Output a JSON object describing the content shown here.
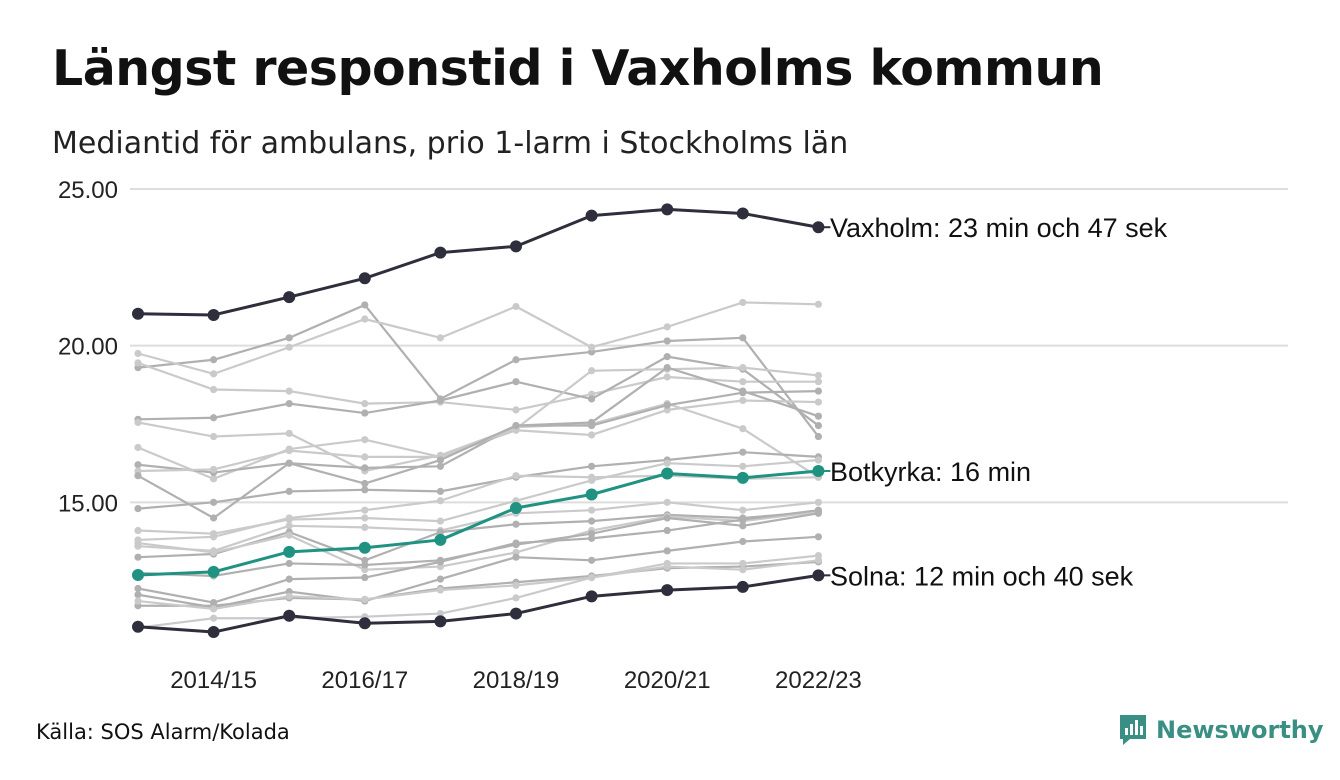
{
  "header": {
    "title": "Längst responstid i Vaxholms kommun",
    "subtitle": "Mediantid för ambulans, prio 1-larm i Stockholms län"
  },
  "footer": {
    "source": "Källa: SOS Alarm/Kolada",
    "brand": "Newsworthy"
  },
  "colors": {
    "highlight_dark": "#2e2e3c",
    "highlight_teal": "#1f9282",
    "other_a": "#b0b0b0",
    "other_b": "#cacaca",
    "grid": "#dddddd",
    "brand": "#3a8f84"
  },
  "chart_data": {
    "type": "line",
    "x": [
      "2013/14",
      "2014/15",
      "2015/16",
      "2016/17",
      "2017/18",
      "2018/19",
      "2019/20",
      "2020/21",
      "2021/22",
      "2022/23"
    ],
    "x_tick_labels": [
      "2014/15",
      "2016/17",
      "2018/19",
      "2020/21",
      "2022/23"
    ],
    "ylim": [
      10,
      25
    ],
    "y_ticks": [
      "15.00",
      "20.00",
      "25.00"
    ],
    "grid": true,
    "highlighted": [
      {
        "name": "Vaxholm",
        "label": "Vaxholm: 23 min och 47 sek",
        "color": "dark",
        "values": [
          21.02,
          20.98,
          21.55,
          22.15,
          22.97,
          23.17,
          24.15,
          24.35,
          24.22,
          23.78
        ]
      },
      {
        "name": "Botkyrka",
        "label": "Botkyrka: 16 min",
        "color": "teal",
        "values": [
          12.68,
          12.78,
          13.42,
          13.55,
          13.8,
          14.82,
          15.25,
          15.92,
          15.78,
          16.0
        ]
      },
      {
        "name": "Solna",
        "label": "Solna: 12 min och 40 sek",
        "color": "dark",
        "values": [
          11.03,
          10.86,
          11.38,
          11.14,
          11.2,
          11.45,
          12.0,
          12.2,
          12.3,
          12.67
        ]
      }
    ],
    "series": [
      {
        "values": [
          19.3,
          19.55,
          20.25,
          21.3,
          18.3,
          19.55,
          19.8,
          20.15,
          20.25,
          17.1
        ],
        "color": "a"
      },
      {
        "values": [
          19.75,
          19.1,
          19.95,
          20.85,
          20.25,
          21.25,
          19.95,
          20.6,
          21.38,
          21.32
        ],
        "color": "b"
      },
      {
        "values": [
          19.45,
          18.6,
          18.55,
          18.15,
          18.2,
          17.95,
          18.45,
          19.0,
          18.85,
          18.85
        ],
        "color": "b"
      },
      {
        "values": [
          17.65,
          17.7,
          18.15,
          17.85,
          18.25,
          18.85,
          18.3,
          19.65,
          19.25,
          17.45
        ],
        "color": "a"
      },
      {
        "values": [
          17.55,
          17.1,
          17.2,
          16.0,
          16.5,
          17.4,
          17.5,
          18.15,
          17.35,
          15.8
        ],
        "color": "b"
      },
      {
        "values": [
          16.75,
          15.75,
          16.7,
          17.0,
          16.45,
          17.3,
          17.15,
          17.95,
          18.25,
          18.2
        ],
        "color": "b"
      },
      {
        "values": [
          16.2,
          15.95,
          16.25,
          16.1,
          16.15,
          17.45,
          17.45,
          18.1,
          18.5,
          18.55
        ],
        "color": "a"
      },
      {
        "values": [
          16.0,
          16.05,
          16.65,
          16.45,
          16.45,
          17.35,
          19.2,
          19.25,
          19.3,
          19.05
        ],
        "color": "b"
      },
      {
        "values": [
          15.85,
          14.5,
          16.25,
          15.6,
          16.35,
          17.45,
          17.55,
          19.3,
          18.55,
          17.75
        ],
        "color": "a"
      },
      {
        "values": [
          14.8,
          15.0,
          15.35,
          15.4,
          15.35,
          15.8,
          16.15,
          16.35,
          16.6,
          16.45
        ],
        "color": "a"
      },
      {
        "values": [
          14.1,
          14.0,
          14.45,
          14.5,
          14.4,
          15.05,
          15.7,
          16.25,
          16.15,
          16.35
        ],
        "color": "b"
      },
      {
        "values": [
          13.8,
          13.9,
          14.5,
          14.75,
          15.05,
          15.85,
          15.8,
          15.85,
          15.75,
          15.8
        ],
        "color": "b"
      },
      {
        "values": [
          13.6,
          13.45,
          14.25,
          14.2,
          14.1,
          14.65,
          14.75,
          15.0,
          14.75,
          15.0
        ],
        "color": "b"
      },
      {
        "values": [
          13.25,
          13.35,
          14.05,
          13.15,
          14.05,
          14.3,
          14.4,
          14.6,
          14.5,
          14.7
        ],
        "color": "a"
      },
      {
        "values": [
          13.7,
          13.4,
          13.95,
          12.85,
          12.95,
          13.4,
          14.1,
          14.55,
          14.4,
          14.7
        ],
        "color": "b"
      },
      {
        "values": [
          12.75,
          12.65,
          13.05,
          13.0,
          13.15,
          13.65,
          14.0,
          14.5,
          14.25,
          14.65
        ],
        "color": "a"
      },
      {
        "values": [
          12.25,
          11.8,
          12.55,
          12.6,
          13.1,
          13.7,
          13.85,
          14.1,
          14.45,
          14.75
        ],
        "color": "a"
      },
      {
        "values": [
          12.05,
          11.65,
          12.15,
          11.85,
          12.55,
          13.25,
          13.15,
          13.45,
          13.75,
          13.9
        ],
        "color": "a"
      },
      {
        "values": [
          11.7,
          11.7,
          11.95,
          11.9,
          12.25,
          12.45,
          12.65,
          12.9,
          12.95,
          13.1
        ],
        "color": "a"
      },
      {
        "values": [
          11.85,
          11.6,
          12.0,
          11.9,
          12.2,
          12.35,
          12.6,
          13.05,
          13.05,
          13.3
        ],
        "color": "b"
      },
      {
        "values": [
          11.0,
          11.3,
          11.3,
          11.35,
          11.45,
          11.95,
          12.6,
          12.95,
          12.85,
          13.15
        ],
        "color": "b"
      }
    ]
  }
}
